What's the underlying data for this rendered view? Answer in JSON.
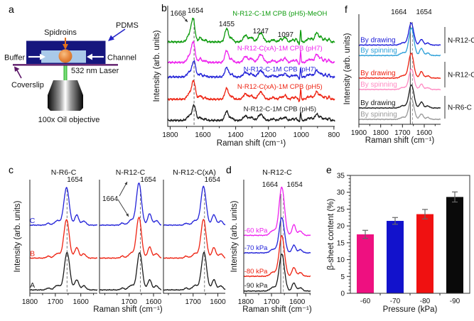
{
  "figure": {
    "panel_letters": {
      "a": "a",
      "b": "b",
      "c": "c",
      "d": "d",
      "e": "e",
      "f": "f"
    }
  },
  "panel_a": {
    "labels": {
      "spidroins": "Spidroins",
      "pdms": "PDMS",
      "buffer": "Buffer",
      "channel": "Channel",
      "laser": "532 nm Laser",
      "coverslip": "Coverslip",
      "objective": "100x Oil objective"
    },
    "colors": {
      "pdms": "#16167e",
      "channel_fill": "#a9c9e9",
      "droplet": "#e8883f",
      "coverslip": "#5a1466",
      "laser": "#2ecc2e",
      "label_text": "#111111",
      "pdms_arrow": "#2424c8",
      "spidroin_arrow": "#e2701c",
      "white_arrow": "#ffffff"
    }
  },
  "chart_data": [
    {
      "id": "b",
      "type": "line",
      "kind": "raman-spectra",
      "xlabel": "Raman shift (cm⁻¹)",
      "ylabel": "Intensity (arb. units)",
      "x_range": [
        1815,
        795
      ],
      "x_ticks": [
        "1800",
        "1600",
        "1400",
        "1200",
        "1000",
        "800"
      ],
      "x_tick_values": [
        1800,
        1600,
        1400,
        1200,
        1000,
        800
      ],
      "minor_step": 100,
      "vlines": [
        {
          "x": 1654,
          "style": "dashed",
          "color": "#666666"
        }
      ],
      "peak_labels": [
        {
          "text": "1668",
          "x": 1668,
          "dx": -8,
          "anchor": "end",
          "yo": 14
        },
        {
          "text": "1654",
          "x": 1654,
          "dx": 2,
          "anchor": "middle",
          "yo": 10
        },
        {
          "text": "1455",
          "x": 1455,
          "dx": 0,
          "anchor": "middle",
          "yo": 29
        },
        {
          "text": "1247",
          "x": 1247,
          "dx": 0,
          "anchor": "middle",
          "yo": 39
        },
        {
          "text": "1097",
          "x": 1095,
          "dx": 0,
          "anchor": "middle",
          "yo": 44
        }
      ],
      "peaks": [
        [
          0,
          1.0,
          11
        ],
        [
          1684,
          0.3,
          13
        ],
        [
          1616,
          0.2,
          9
        ],
        [
          1586,
          0.09,
          8
        ],
        [
          1455,
          0.6,
          11
        ],
        [
          1424,
          0.16,
          9
        ],
        [
          1340,
          0.3,
          13
        ],
        [
          1304,
          0.2,
          11
        ],
        [
          1247,
          0.4,
          15
        ],
        [
          1172,
          0.1,
          11
        ],
        [
          1125,
          0.13,
          9
        ],
        [
          1098,
          0.22,
          9
        ],
        [
          1052,
          0.1,
          9
        ],
        [
          1031,
          0.13,
          5
        ],
        [
          1012,
          -0.13,
          2.6
        ],
        [
          1003,
          0.55,
          2.8
        ],
        [
          958,
          0.13,
          9
        ],
        [
          938,
          0.14,
          8
        ],
        [
          905,
          0.42,
          11
        ],
        [
          878,
          0.22,
          8
        ],
        [
          853,
          0.16,
          6
        ],
        [
          830,
          0.16,
          5
        ]
      ],
      "traces": [
        {
          "label": "N-R12-C-1M CPB (pH5)",
          "color": "#1a1a1a",
          "base": 0.05,
          "amp": 0.125,
          "main": 1654,
          "label_x": 1130,
          "label_dy": 13
        },
        {
          "label": "N-R12-C(xA)-1M CPB (pH5)",
          "color": "#ee2211",
          "base": 0.225,
          "amp": 0.15,
          "main": 1657,
          "label_x": 1130,
          "label_dy": 15
        },
        {
          "label": "N-R12-C-1M CPB (pH7)",
          "color": "#2222d8",
          "base": 0.41,
          "amp": 0.13,
          "main": 1655,
          "label_x": 1130,
          "label_dy": 8
        },
        {
          "label": "N-R12-C(xA)-1M CPB (pH7)",
          "color": "#ee22ee",
          "base": 0.53,
          "amp": 0.165,
          "main": 1659,
          "label_x": 1130,
          "label_dy": 17
        },
        {
          "label": "N-R12-C-1M CPB (pH5)-MeOH",
          "color": "#0d9b0d",
          "base": 0.7,
          "amp": 0.185,
          "main": 1660,
          "label_x": 1130,
          "label_dy": 37
        }
      ]
    },
    {
      "id": "c1",
      "type": "line",
      "kind": "raman-spectra",
      "title": "N-R6-C",
      "xlabel": "Raman shift (cm⁻¹)",
      "ylabel": "Intensity (arb. units)",
      "x_range": [
        1800,
        1535
      ],
      "x_ticks": [
        "1800",
        "1700",
        "1600"
      ],
      "x_tick_values": [
        1800,
        1700,
        1600
      ],
      "minor_step": 50,
      "vlines": [
        {
          "x": 1654,
          "style": "dashed",
          "color": "#777777"
        }
      ],
      "peak_labels": [
        {
          "text": "1654",
          "x": 1654,
          "dx": 11,
          "anchor": "middle",
          "yo": 3
        }
      ],
      "peaks": [
        [
          0,
          1.0,
          10.5
        ],
        [
          1692,
          0.12,
          11
        ],
        [
          1616,
          0.27,
          8
        ],
        [
          1588,
          0.11,
          8
        ],
        [
          1728,
          0.05,
          7
        ]
      ],
      "traces": [
        {
          "label": "A",
          "color": "#1a1a1a",
          "base": 0.03,
          "amp": 0.33,
          "main": 1654,
          "label_x": 1790,
          "label_dy": 3
        },
        {
          "label": "B",
          "color": "#ee2211",
          "base": 0.31,
          "amp": 0.34,
          "main": 1656,
          "label_x": 1790,
          "label_dy": 3
        },
        {
          "label": "C",
          "color": "#2222d8",
          "base": 0.6,
          "amp": 0.33,
          "main": 1656,
          "label_x": 1790,
          "label_dy": 3
        }
      ]
    },
    {
      "id": "c2",
      "type": "line",
      "kind": "raman-spectra",
      "title": "N-R12-C",
      "xlabel": "",
      "ylabel": "",
      "x_range": [
        1822,
        1568
      ],
      "x_ticks": [
        "1700",
        "1600"
      ],
      "x_tick_values": [
        1700,
        1600
      ],
      "minor_step": 50,
      "vlines": [
        {
          "x": 1654,
          "style": "dashed",
          "color": "#777777"
        }
      ],
      "peak_labels": [
        {
          "text": "1654",
          "x": 1654,
          "dx": 11,
          "anchor": "middle",
          "yo": 3
        },
        {
          "text": "1664",
          "x": 1778,
          "dx": 0,
          "anchor": "middle",
          "yo": 30
        }
      ],
      "peaks": [
        [
          0,
          1.0,
          10.5
        ],
        [
          1692,
          0.12,
          11
        ],
        [
          1616,
          0.27,
          8
        ],
        [
          1588,
          0.11,
          8
        ],
        [
          1728,
          0.05,
          7
        ]
      ],
      "traces": [
        {
          "label": "",
          "color": "#1a1a1a",
          "base": 0.03,
          "amp": 0.33,
          "main": 1657,
          "label_x": 1790,
          "label_dy": 3
        },
        {
          "label": "",
          "color": "#ee2211",
          "base": 0.31,
          "amp": 0.36,
          "main": 1660,
          "label_x": 1790,
          "label_dy": 3
        },
        {
          "label": "",
          "color": "#2222d8",
          "base": 0.6,
          "amp": 0.37,
          "main": 1660,
          "label_x": 1790,
          "label_dy": 3
        }
      ]
    },
    {
      "id": "c3",
      "type": "line",
      "kind": "raman-spectra",
      "title": "N-R12-C(xA)",
      "xlabel": "",
      "ylabel": "",
      "x_range": [
        1820,
        1570
      ],
      "x_ticks": [
        "1700",
        "1600"
      ],
      "x_tick_values": [
        1700,
        1600
      ],
      "minor_step": 50,
      "vlines": [
        {
          "x": 1654,
          "style": "dashed",
          "color": "#777777"
        }
      ],
      "peak_labels": [
        {
          "text": "1654",
          "x": 1654,
          "dx": 11,
          "anchor": "middle",
          "yo": 3
        }
      ],
      "peaks": [
        [
          0,
          1.0,
          10.5
        ],
        [
          1692,
          0.12,
          11
        ],
        [
          1616,
          0.27,
          8
        ],
        [
          1588,
          0.11,
          8
        ],
        [
          1728,
          0.05,
          7
        ]
      ],
      "traces": [
        {
          "label": "",
          "color": "#1a1a1a",
          "base": 0.03,
          "amp": 0.33,
          "main": 1656,
          "label_x": 1790,
          "label_dy": 3
        },
        {
          "label": "",
          "color": "#ee2211",
          "base": 0.31,
          "amp": 0.34,
          "main": 1658,
          "label_x": 1790,
          "label_dy": 3
        },
        {
          "label": "",
          "color": "#2222d8",
          "base": 0.6,
          "amp": 0.34,
          "main": 1658,
          "label_x": 1790,
          "label_dy": 3
        }
      ]
    },
    {
      "id": "d",
      "type": "line",
      "kind": "raman-spectra",
      "title": "N-R12-C",
      "xlabel": "Raman shift (cm⁻¹)",
      "ylabel": "Intensity (arb. units)",
      "x_range": [
        1808,
        1548
      ],
      "x_ticks": [
        "1800",
        "1700",
        "1600"
      ],
      "x_tick_values": [
        1800,
        1700,
        1600
      ],
      "minor_step": 50,
      "vlines": [
        {
          "x": 1664,
          "style": "solid",
          "color": "#444444"
        },
        {
          "x": 1654,
          "style": "dashed",
          "color": "#999999"
        }
      ],
      "peak_labels": [
        {
          "text": "1664",
          "x": 1664,
          "dx": -4,
          "anchor": "end",
          "yo": 10
        },
        {
          "text": "1654",
          "x": 1654,
          "dx": 16,
          "anchor": "middle",
          "yo": 10
        }
      ],
      "peaks": [
        [
          0,
          1.0,
          10.5
        ],
        [
          1694,
          0.1,
          11
        ],
        [
          1613,
          0.22,
          7
        ],
        [
          1588,
          0.09,
          8
        ]
      ],
      "traces": [
        {
          "label": "-90 kPa",
          "color": "#1a1a1a",
          "base": 0.02,
          "amp": 0.325,
          "main": 1660,
          "label_x": 1806,
          "label_dy": 5
        },
        {
          "label": "-80 kPa",
          "color": "#ee2211",
          "base": 0.15,
          "amp": 0.356,
          "main": 1660,
          "label_x": 1806,
          "label_dy": 4
        },
        {
          "label": "-70 kPa",
          "color": "#2222d8",
          "base": 0.356,
          "amp": 0.31,
          "main": 1660,
          "label_x": 1806,
          "label_dy": 4
        },
        {
          "label": "-60 kPa",
          "color": "#ee22ee",
          "base": 0.51,
          "amp": 0.425,
          "main": 1660,
          "label_x": 1806,
          "label_dy": 4
        }
      ]
    },
    {
      "id": "e",
      "type": "bar",
      "title": "",
      "xlabel": "Pressure (kPa)",
      "ylabel": "β-sheet content (%)",
      "categories": [
        "-60",
        "-70",
        "-80",
        "-90"
      ],
      "values": [
        17.5,
        21.5,
        23.5,
        28.6
      ],
      "errors": [
        1.2,
        1.0,
        1.4,
        1.5
      ],
      "bar_colors": [
        "#ee1080",
        "#1212cc",
        "#f01111",
        "#0a0a0a"
      ],
      "error_color": "#666666",
      "ylim": [
        0,
        35
      ],
      "y_ticks": [
        "0",
        "5",
        "10",
        "15",
        "20",
        "25",
        "30",
        "35"
      ],
      "y_tick_values": [
        0,
        5,
        10,
        15,
        20,
        25,
        30,
        35
      ],
      "y_minor_step": 1
    },
    {
      "id": "f",
      "type": "line",
      "kind": "raman-spectra",
      "xlabel": "Raman shift (cm⁻¹)",
      "ylabel": "Intensity (arb. units)",
      "x_range": [
        1900,
        1525
      ],
      "x_ticks": [
        "1900",
        "1800",
        "1700",
        "1600"
      ],
      "x_tick_values": [
        1900,
        1800,
        1700,
        1600
      ],
      "minor_step": 50,
      "vlines": [
        {
          "x": 1664,
          "style": "solid",
          "color": "#444444"
        },
        {
          "x": 1654,
          "style": "dashed",
          "color": "#999999"
        }
      ],
      "peak_labels": [
        {
          "text": "1664",
          "x": 1664,
          "dx": -5,
          "anchor": "end",
          "yo": 0
        },
        {
          "text": "1654",
          "x": 1654,
          "dx": 5,
          "anchor": "start",
          "yo": 0
        }
      ],
      "peaks": [
        [
          0,
          1.0,
          11.5
        ],
        [
          1698,
          0.1,
          12
        ],
        [
          1613,
          0.26,
          8
        ],
        [
          1584,
          0.09,
          8
        ]
      ],
      "traces": [
        {
          "label": "By spinning",
          "color": "#999999",
          "base": 0.045,
          "amp": 0.19,
          "main": 1659,
          "label_x": 1893,
          "label_dy": 4
        },
        {
          "label": "By drawing",
          "color": "#1a1a1a",
          "base": 0.148,
          "amp": 0.21,
          "main": 1659,
          "label_x": 1893,
          "label_dy": 4
        },
        {
          "label": "By spinning",
          "color": "#ff8cc3",
          "base": 0.316,
          "amp": 0.187,
          "main": 1659,
          "label_x": 1893,
          "label_dy": 4
        },
        {
          "label": "By drawing",
          "color": "#ee2211",
          "base": 0.42,
          "amp": 0.226,
          "main": 1660,
          "label_x": 1893,
          "label_dy": 4
        },
        {
          "label": "By spinning",
          "color": "#2a9fd8",
          "base": 0.625,
          "amp": 0.25,
          "main": 1659,
          "label_x": 1893,
          "label_dy": 4
        },
        {
          "label": "By drawing",
          "color": "#1a1ad8",
          "base": 0.72,
          "amp": 0.2,
          "main": 1660,
          "label_x": 1893,
          "label_dy": 4
        }
      ],
      "groups": [
        {
          "label": "N-R12-C",
          "y1f": 0.116,
          "y2f": 0.355
        },
        {
          "label": "N-R12-C",
          "y1f": 0.432,
          "y2f": 0.665
        },
        {
          "label": "N-R6-C",
          "y1f": 0.742,
          "y2f": 0.948
        }
      ]
    }
  ]
}
